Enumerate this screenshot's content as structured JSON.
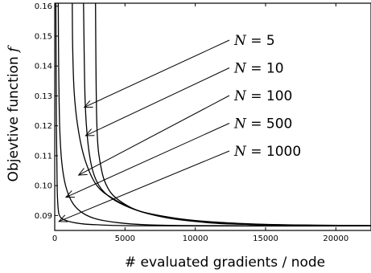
{
  "chart_data": {
    "type": "line",
    "title": "",
    "xlabel": "# evaluated gradients / node",
    "ylabel": "Objevtive function",
    "ylabel_symbol": "f",
    "xlim": [
      0,
      22500
    ],
    "ylim": [
      0.085,
      0.161
    ],
    "xticks": [
      0,
      5000,
      10000,
      15000,
      20000
    ],
    "xtick_labels": [
      "0",
      "5000",
      "10000",
      "15000",
      "20000"
    ],
    "yticks": [
      0.09,
      0.1,
      0.11,
      0.12,
      0.13,
      0.14,
      0.15,
      0.16
    ],
    "ytick_labels": [
      "0.09",
      "0.10",
      "0.11",
      "0.12",
      "0.13",
      "0.14",
      "0.15",
      "0.16"
    ],
    "grid": false,
    "series": [
      {
        "name": "N = 5",
        "x": [
          2900,
          3000,
          3300,
          3800,
          4600,
          6000,
          8000,
          10000,
          13000,
          16000,
          19000,
          22500
        ],
        "y": [
          0.161,
          0.12,
          0.106,
          0.099,
          0.095,
          0.0915,
          0.0895,
          0.0883,
          0.0874,
          0.0869,
          0.0867,
          0.0866
        ]
      },
      {
        "name": "N = 10",
        "x": [
          2050,
          2150,
          2350,
          2700,
          3300,
          4300,
          6000,
          8000,
          10000,
          13000,
          16000,
          22500
        ],
        "y": [
          0.161,
          0.13,
          0.115,
          0.105,
          0.099,
          0.095,
          0.0915,
          0.0895,
          0.0882,
          0.0872,
          0.0868,
          0.0866
        ]
      },
      {
        "name": "N = 100",
        "x": [
          1250,
          1280,
          1400,
          1700,
          2200,
          3000,
          4200,
          6000,
          8000,
          10000,
          13000,
          22500
        ],
        "y": [
          0.161,
          0.145,
          0.13,
          0.118,
          0.108,
          0.1,
          0.0955,
          0.0915,
          0.0892,
          0.088,
          0.0871,
          0.0866
        ]
      },
      {
        "name": "N = 500",
        "x": [
          250,
          280,
          350,
          500,
          800,
          1300,
          2000,
          3000,
          4500,
          6500,
          10000,
          22500
        ],
        "y": [
          0.161,
          0.14,
          0.12,
          0.108,
          0.0995,
          0.094,
          0.0908,
          0.0888,
          0.0876,
          0.0869,
          0.0866,
          0.0865
        ]
      },
      {
        "name": "N = 1000",
        "x": [
          80,
          120,
          170,
          250,
          400,
          700,
          1200,
          2000,
          3000,
          5000,
          10000,
          22500
        ],
        "y": [
          0.161,
          0.12,
          0.1,
          0.092,
          0.0895,
          0.0885,
          0.0878,
          0.0872,
          0.0869,
          0.0866,
          0.0865,
          0.0865
        ]
      }
    ],
    "annotations": [
      {
        "prefix": "N",
        "text": "= 5",
        "target_x": 2100,
        "target_y": 0.1262
      },
      {
        "prefix": "N",
        "text": "= 10",
        "target_x": 2200,
        "target_y": 0.1167
      },
      {
        "prefix": "N",
        "text": "= 100",
        "target_x": 1700,
        "target_y": 0.1035
      },
      {
        "prefix": "N",
        "text": "= 500",
        "target_x": 800,
        "target_y": 0.0961
      },
      {
        "prefix": "N",
        "text": "= 1000",
        "target_x": 300,
        "target_y": 0.088
      }
    ]
  }
}
